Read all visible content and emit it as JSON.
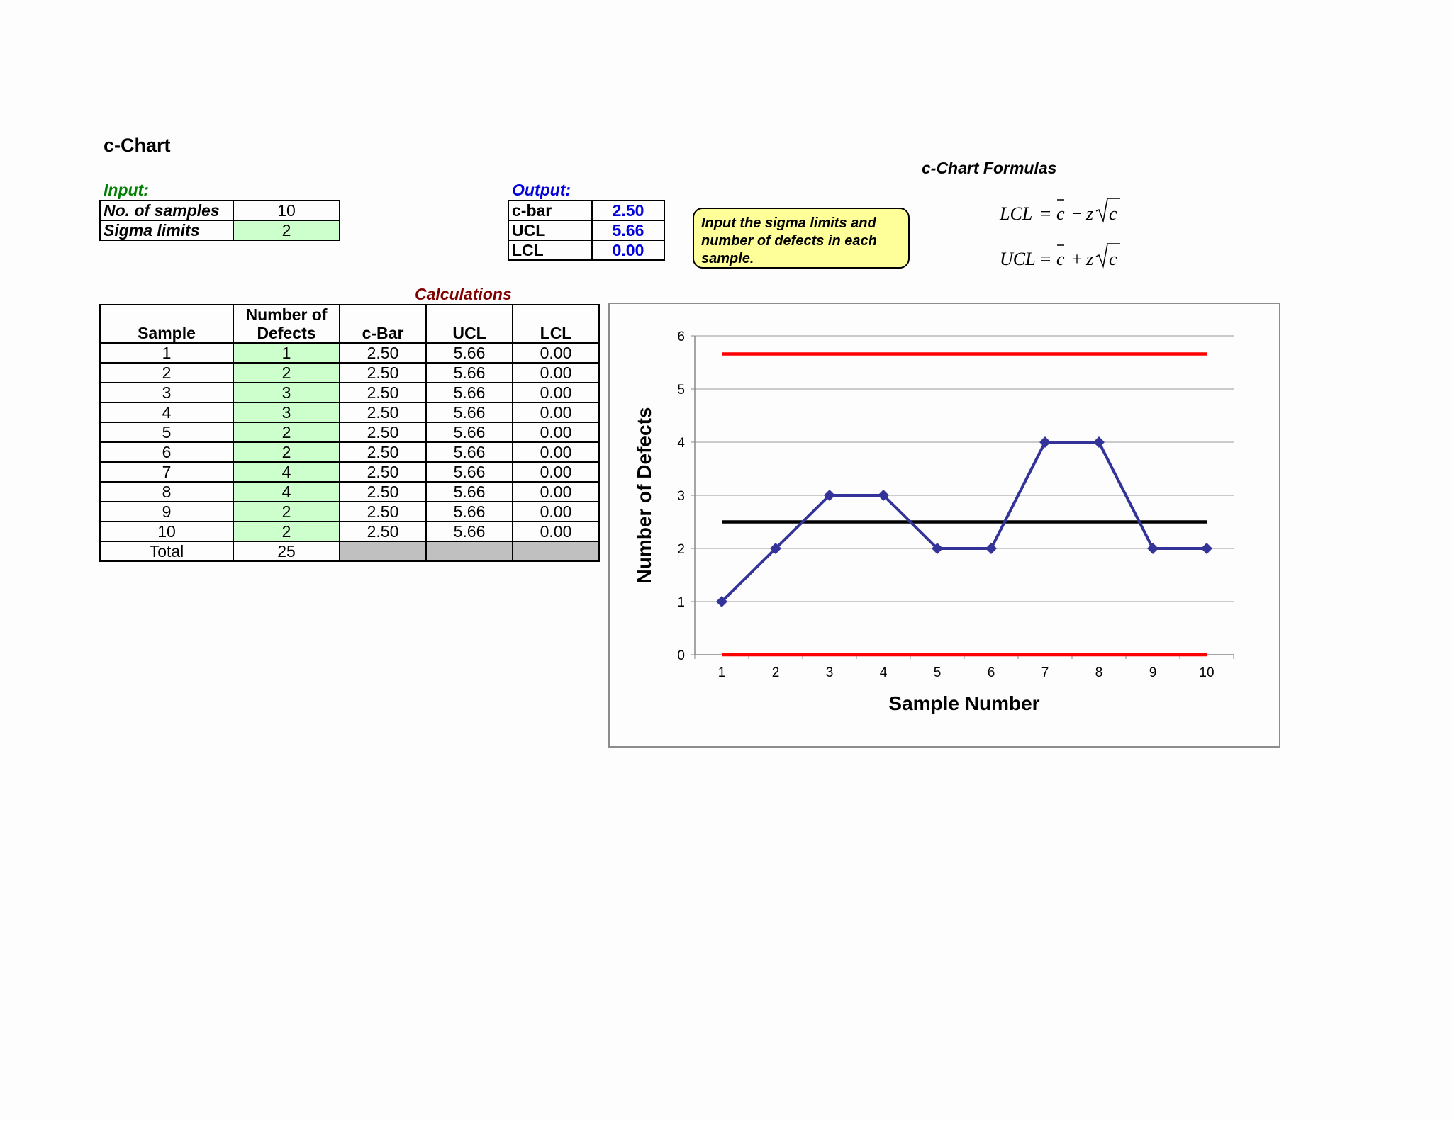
{
  "page": {
    "title": "c-Chart"
  },
  "input": {
    "label": "Input:",
    "rows": [
      {
        "label": "No. of samples",
        "value": "10"
      },
      {
        "label": "Sigma limits",
        "value": "2"
      }
    ]
  },
  "output": {
    "label": "Output:",
    "rows": [
      {
        "label": "c-bar",
        "value": "2.50"
      },
      {
        "label": "UCL",
        "value": "5.66"
      },
      {
        "label": "LCL",
        "value": "0.00"
      }
    ]
  },
  "note": "Input the sigma limits and number of defects in each sample.",
  "formulas": {
    "title": "c-Chart Formulas",
    "lcl_lhs": "LCL",
    "ucl_lhs": "UCL",
    "op_minus": "−",
    "op_plus": "+",
    "eq": "=",
    "c": "c",
    "z": "z"
  },
  "calculations": {
    "title": "Calculations",
    "headers": [
      "Sample",
      "Number of Defects",
      "c-Bar",
      "UCL",
      "LCL"
    ],
    "rows": [
      [
        "1",
        "1",
        "2.50",
        "5.66",
        "0.00"
      ],
      [
        "2",
        "2",
        "2.50",
        "5.66",
        "0.00"
      ],
      [
        "3",
        "3",
        "2.50",
        "5.66",
        "0.00"
      ],
      [
        "4",
        "3",
        "2.50",
        "5.66",
        "0.00"
      ],
      [
        "5",
        "2",
        "2.50",
        "5.66",
        "0.00"
      ],
      [
        "6",
        "2",
        "2.50",
        "5.66",
        "0.00"
      ],
      [
        "7",
        "4",
        "2.50",
        "5.66",
        "0.00"
      ],
      [
        "8",
        "4",
        "2.50",
        "5.66",
        "0.00"
      ],
      [
        "9",
        "2",
        "2.50",
        "5.66",
        "0.00"
      ],
      [
        "10",
        "2",
        "2.50",
        "5.66",
        "0.00"
      ]
    ],
    "total_label": "Total",
    "total_value": "25"
  },
  "chart_data": {
    "type": "line",
    "title": "",
    "xlabel": "Sample Number",
    "ylabel": "Number of Defects",
    "x": [
      1,
      2,
      3,
      4,
      5,
      6,
      7,
      8,
      9,
      10
    ],
    "ylim": [
      0,
      6
    ],
    "yticks": [
      0,
      1,
      2,
      3,
      4,
      5,
      6
    ],
    "grid": true,
    "legend": "none",
    "series": [
      {
        "values": [
          1,
          2,
          3,
          3,
          2,
          2,
          4,
          4,
          2,
          2
        ],
        "color": "#333399",
        "marker": "diamond"
      },
      {
        "values": [
          5.66,
          5.66,
          5.66,
          5.66,
          5.66,
          5.66,
          5.66,
          5.66,
          5.66,
          5.66
        ],
        "color": "#ff0000"
      },
      {
        "values": [
          2.5,
          2.5,
          2.5,
          2.5,
          2.5,
          2.5,
          2.5,
          2.5,
          2.5,
          2.5
        ],
        "color": "#000000"
      },
      {
        "values": [
          0,
          0,
          0,
          0,
          0,
          0,
          0,
          0,
          0,
          0
        ],
        "color": "#ff0000"
      }
    ]
  },
  "colors": {
    "input_label": "#008000",
    "output_label": "#0000dd",
    "calc_label": "#800000",
    "input_cell": "#ccffcc"
  }
}
